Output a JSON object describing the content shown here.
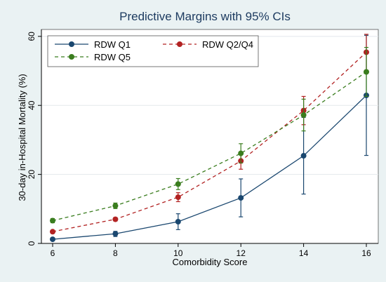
{
  "chart_data": {
    "type": "line",
    "title": "Predictive Margins with 95% CIs",
    "xlabel": "Comorbidity Score",
    "ylabel": "30-day in-Hospital Mortality (%)",
    "x": [
      6,
      8,
      10,
      12,
      14,
      16
    ],
    "xlim": [
      6,
      16
    ],
    "ylim": [
      0,
      62
    ],
    "xticks": [
      6,
      8,
      10,
      12,
      14,
      16
    ],
    "yticks": [
      0,
      20,
      40,
      60
    ],
    "grid": "horizontal",
    "legend_position": "top-left, inside",
    "series": [
      {
        "name": "RDW Q1",
        "color": "#1a476f",
        "dash": "solid",
        "values": [
          1.2,
          2.8,
          6.3,
          13.2,
          25.4,
          42.9
        ],
        "ci_low": [
          1.0,
          2.0,
          4.0,
          7.7,
          14.3,
          25.5
        ],
        "ci_high": [
          1.4,
          3.5,
          8.6,
          18.7,
          36.5,
          60.3
        ]
      },
      {
        "name": "RDW Q2/Q4",
        "color": "#b22222",
        "dash": "dashed",
        "values": [
          3.4,
          7.0,
          13.4,
          23.9,
          38.5,
          55.4
        ],
        "ci_low": [
          3.0,
          6.5,
          12.1,
          21.5,
          34.4,
          50.2
        ],
        "ci_high": [
          3.8,
          7.5,
          14.7,
          26.3,
          42.6,
          60.6
        ]
      },
      {
        "name": "RDW Q5",
        "color": "#3a7d1e",
        "dash": "dashed",
        "values": [
          6.6,
          10.9,
          17.2,
          26.1,
          37.2,
          49.7
        ],
        "ci_low": [
          6.0,
          10.1,
          15.6,
          23.3,
          32.6,
          42.6
        ],
        "ci_high": [
          7.2,
          11.7,
          18.8,
          28.9,
          41.8,
          56.8
        ]
      }
    ]
  }
}
